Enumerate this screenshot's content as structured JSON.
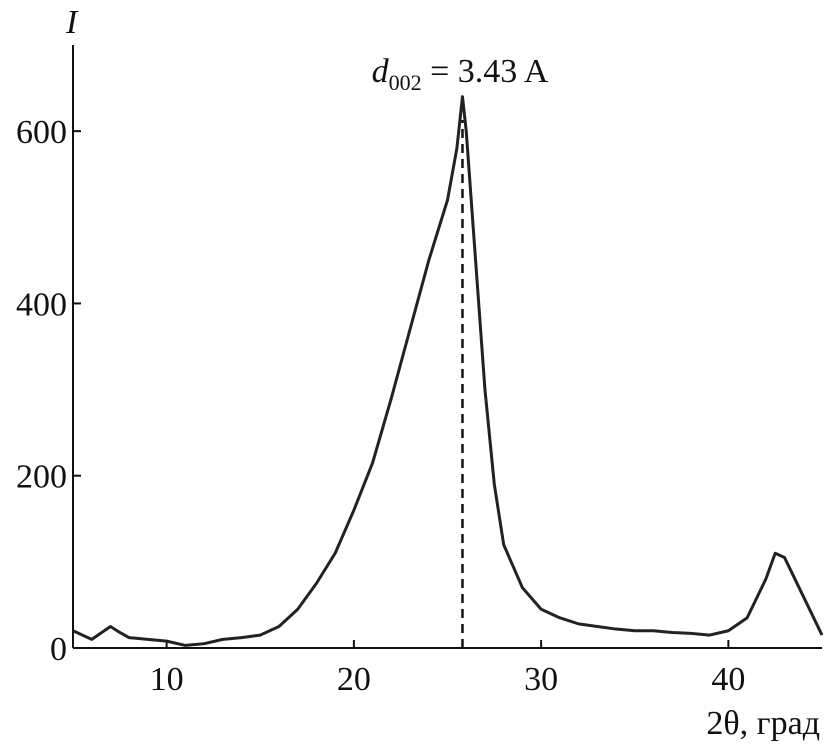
{
  "chart_data": {
    "type": "line",
    "y_label": "I",
    "x_label": "2θ, град",
    "annotation": {
      "symbol": "d",
      "subscript": "002",
      "text": " = 3.43 A",
      "x": 25.8
    },
    "x": [
      5,
      6,
      7,
      7.5,
      8,
      9,
      10,
      11,
      12,
      13,
      14,
      15,
      16,
      17,
      18,
      19,
      20,
      21,
      22,
      23,
      24,
      25,
      25.5,
      25.8,
      26,
      26.5,
      27,
      27.5,
      28,
      29,
      30,
      31,
      32,
      33,
      34,
      35,
      36,
      37,
      38,
      39,
      40,
      41,
      42,
      42.5,
      43,
      44,
      45
    ],
    "series": [
      {
        "color": "#222222",
        "values": [
          20,
          10,
          25,
          18,
          12,
          10,
          8,
          3,
          5,
          10,
          12,
          15,
          25,
          45,
          75,
          110,
          160,
          215,
          290,
          370,
          450,
          520,
          580,
          640,
          600,
          450,
          300,
          190,
          120,
          70,
          45,
          35,
          28,
          25,
          22,
          20,
          20,
          18,
          17,
          15,
          20,
          35,
          80,
          110,
          105,
          60,
          15
        ]
      }
    ],
    "xlim": [
      5,
      45
    ],
    "xticks": [
      10,
      20,
      30,
      40
    ],
    "ylim": [
      0,
      700
    ],
    "yticks": [
      0,
      200,
      400,
      600
    ]
  }
}
